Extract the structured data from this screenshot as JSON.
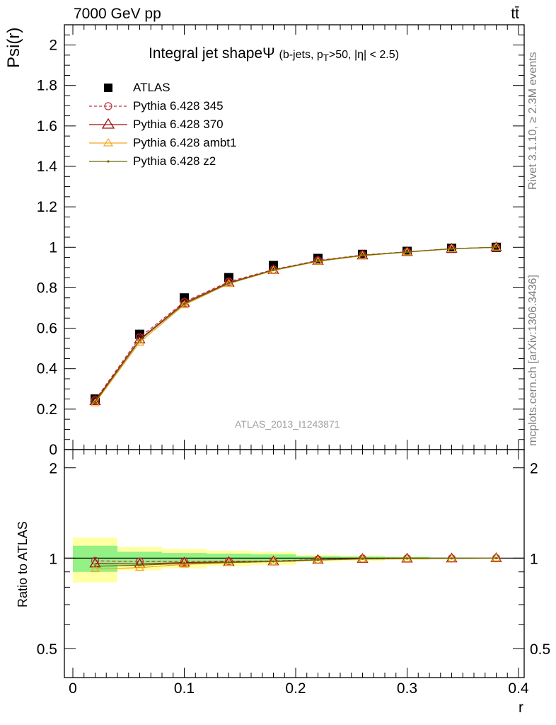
{
  "header": {
    "left": "7000 GeV pp",
    "right": "tt̄"
  },
  "side_labels": {
    "rivet": "Rivet 3.1.10, ≥ 2.3M events",
    "mcplots": "mcplots.cern.ch [arXiv:1306.3436]"
  },
  "watermark": "ATLAS_2013_I1243871",
  "chart_data": {
    "type": "line",
    "title": "Integral jet shape",
    "title_symbol": "Ψ",
    "subtitle_parts": [
      "(b-jets, p",
      "T",
      ">50, |η| < 2.5)"
    ],
    "xlabel": "r",
    "ylabel": "Psi(r)",
    "ratio_ylabel": "Ratio to ATLAS",
    "xlim": [
      0,
      0.4
    ],
    "ylim": [
      0,
      2.1
    ],
    "ratio_ylim": [
      0.4,
      2.3
    ],
    "x_ticks": [
      "0",
      "0.1",
      "0.2",
      "0.3",
      "0.4"
    ],
    "y_ticks": [
      "0",
      "0.2",
      "0.4",
      "0.6",
      "0.8",
      "1",
      "1.2",
      "1.4",
      "1.6",
      "1.8",
      "2"
    ],
    "ratio_ticks": [
      "0.5",
      "1",
      "2"
    ],
    "x": [
      0.02,
      0.06,
      0.1,
      0.14,
      0.18,
      0.22,
      0.26,
      0.3,
      0.34,
      0.38
    ],
    "x_bins": [
      [
        0,
        0.04
      ],
      [
        0.04,
        0.08
      ],
      [
        0.08,
        0.12
      ],
      [
        0.12,
        0.16
      ],
      [
        0.16,
        0.2
      ],
      [
        0.2,
        0.24
      ],
      [
        0.24,
        0.28
      ],
      [
        0.28,
        0.32
      ],
      [
        0.32,
        0.36
      ],
      [
        0.36,
        0.4
      ]
    ],
    "band_stat": [
      0.1,
      0.05,
      0.04,
      0.035,
      0.03,
      0.015,
      0.012,
      0.008,
      0.004,
      0.002
    ],
    "band_total": [
      0.17,
      0.09,
      0.075,
      0.06,
      0.05,
      0.025,
      0.02,
      0.012,
      0.005,
      0.003
    ],
    "series": [
      {
        "name": "ATLAS",
        "color": "#000000",
        "marker": "square",
        "values": [
          0.25,
          0.57,
          0.75,
          0.85,
          0.91,
          0.945,
          0.965,
          0.98,
          0.995,
          1.0
        ]
      },
      {
        "name": "Pythia 6.428 345",
        "color": "#bb3344",
        "marker": "circle",
        "dashed": true,
        "values": [
          0.245,
          0.555,
          0.73,
          0.83,
          0.89,
          0.935,
          0.962,
          0.978,
          0.993,
          1.0
        ]
      },
      {
        "name": "Pythia 6.428 370",
        "color": "#a01010",
        "marker": "triangle",
        "values": [
          0.24,
          0.545,
          0.725,
          0.825,
          0.888,
          0.933,
          0.96,
          0.977,
          0.993,
          1.0
        ]
      },
      {
        "name": "Pythia 6.428 ambt1",
        "color": "#f0a820",
        "marker": "triangle",
        "values": [
          0.23,
          0.53,
          0.715,
          0.82,
          0.885,
          0.93,
          0.958,
          0.976,
          0.992,
          1.0
        ]
      },
      {
        "name": "Pythia 6.428 z2",
        "color": "#6b6b00",
        "marker": "dot",
        "values": [
          0.235,
          0.54,
          0.72,
          0.822,
          0.887,
          0.932,
          0.96,
          0.977,
          0.993,
          1.0
        ]
      }
    ]
  }
}
